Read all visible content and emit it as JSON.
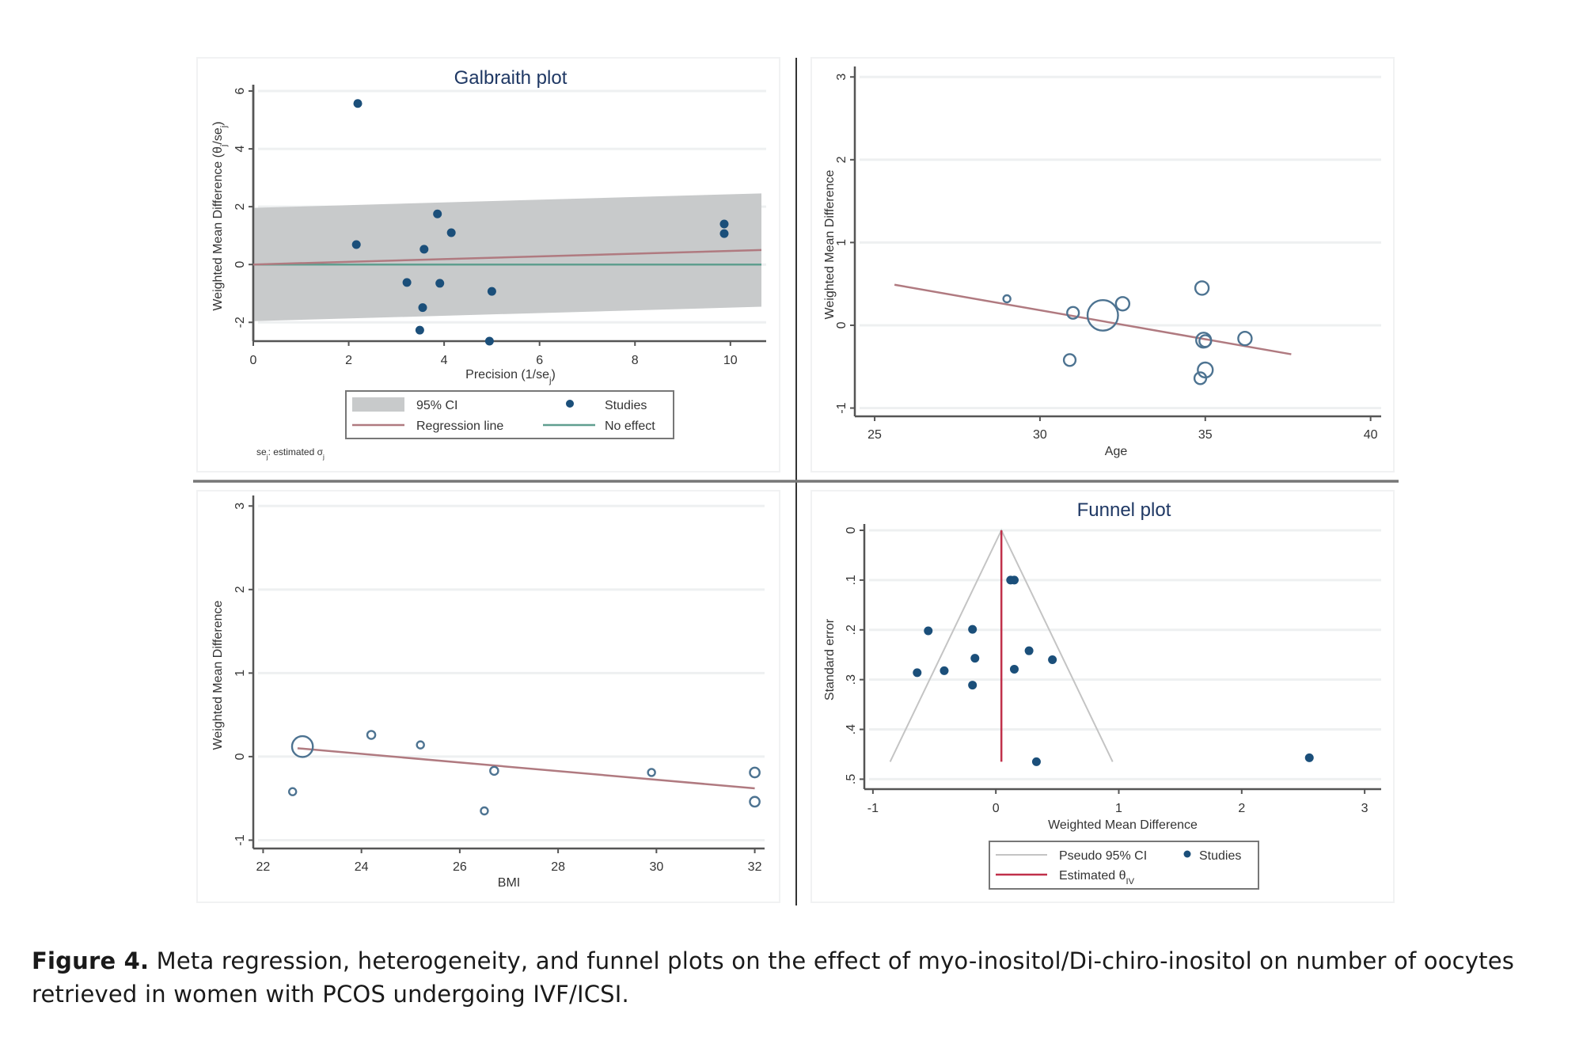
{
  "caption": {
    "label": "Figure 4.",
    "text": " Meta regression, heterogeneity, and funnel plots on the effect of myo-inositol/Di-chiro-inositol on number of oocytes retrieved in women with PCOS undergoing IVF/ICSI."
  },
  "colors": {
    "marker": "#1b4f7a",
    "bubble": "#4d7391",
    "regression": "#b07a80",
    "no_effect": "#5f9e8f",
    "ci_band": "#c8cacb",
    "funnel_lines": "#c4c4c4",
    "estimate_line": "#c0304a",
    "title": "#1f3864",
    "grid": "#eef0f1",
    "axis": "#555555"
  },
  "chart_data": [
    {
      "id": "galbraith",
      "type": "scatter",
      "title": "Galbraith plot",
      "xlabel": "Precision (1/se",
      "xlabel_sub": "j",
      "xlabel_end": ")",
      "ylabel": "Weighted Mean Difference (θ",
      "ylabel_sub1": "j",
      "ylabel_mid": "/se",
      "ylabel_sub2": "j",
      "ylabel_end": ")",
      "xlim": [
        0,
        10.65
      ],
      "ylim": [
        -2.65,
        6
      ],
      "xticks": [
        0,
        2,
        4,
        6,
        8,
        10
      ],
      "yticks": [
        -2,
        0,
        2,
        4,
        6
      ],
      "grid": true,
      "points": [
        {
          "x": 2.19,
          "y": 5.57
        },
        {
          "x": 2.16,
          "y": 0.69
        },
        {
          "x": 3.86,
          "y": 1.75
        },
        {
          "x": 4.15,
          "y": 1.1
        },
        {
          "x": 3.58,
          "y": 0.53
        },
        {
          "x": 3.22,
          "y": -0.62
        },
        {
          "x": 3.91,
          "y": -0.65
        },
        {
          "x": 3.55,
          "y": -1.49
        },
        {
          "x": 3.49,
          "y": -2.27
        },
        {
          "x": 5.0,
          "y": -0.93
        },
        {
          "x": 4.95,
          "y": -2.65
        },
        {
          "x": 9.87,
          "y": 1.4
        },
        {
          "x": 9.87,
          "y": 1.07
        }
      ],
      "regression_line": {
        "x": [
          0,
          10.65
        ],
        "y": [
          0,
          0.5
        ]
      },
      "no_effect_line": {
        "y": 0
      },
      "ci_band": {
        "x": [
          0,
          10.65
        ],
        "upper": [
          1.96,
          2.46
        ],
        "lower": [
          -1.96,
          -1.46
        ]
      },
      "legend": {
        "placement": "bottom-center",
        "items": [
          {
            "label": "95% CI",
            "kind": "band"
          },
          {
            "label": "Studies",
            "kind": "marker"
          },
          {
            "label": "Regression line",
            "kind": "regression"
          },
          {
            "label": "No effect",
            "kind": "no_effect"
          }
        ]
      },
      "note": {
        "prefix": "se",
        "sub1": "j",
        "mid": ": estimated σ",
        "sub2": "j"
      }
    },
    {
      "id": "age",
      "type": "scatter",
      "title": "",
      "xlabel": "Age",
      "ylabel": "Weighted Mean Difference",
      "xlim": [
        24.4,
        40.2
      ],
      "ylim": [
        -1.1,
        3.05
      ],
      "xticks": [
        25,
        30,
        35,
        40
      ],
      "yticks": [
        -1,
        0,
        1,
        2,
        3
      ],
      "grid": true,
      "bubbles": [
        {
          "x": 29.0,
          "y": 0.32,
          "w": 1
        },
        {
          "x": 31.0,
          "y": 0.15,
          "w": 3
        },
        {
          "x": 31.9,
          "y": 0.12,
          "w": 22
        },
        {
          "x": 32.5,
          "y": 0.26,
          "w": 4
        },
        {
          "x": 34.9,
          "y": 0.45,
          "w": 4
        },
        {
          "x": 34.95,
          "y": -0.18,
          "w": 5
        },
        {
          "x": 35.0,
          "y": -0.19,
          "w": 3
        },
        {
          "x": 36.2,
          "y": -0.16,
          "w": 4
        },
        {
          "x": 30.9,
          "y": -0.42,
          "w": 3
        },
        {
          "x": 35.0,
          "y": -0.54,
          "w": 5
        },
        {
          "x": 34.85,
          "y": -0.64,
          "w": 3
        }
      ],
      "regression_line": {
        "x": [
          25.6,
          37.6
        ],
        "y": [
          0.49,
          -0.35
        ]
      }
    },
    {
      "id": "bmi",
      "type": "scatter",
      "title": "",
      "xlabel": "BMI",
      "ylabel": "Weighted Mean Difference",
      "xlim": [
        21.8,
        32.2
      ],
      "ylim": [
        -1.1,
        3.05
      ],
      "xticks": [
        22,
        24,
        26,
        28,
        30,
        32
      ],
      "yticks": [
        -1,
        0,
        1,
        2,
        3
      ],
      "grid": true,
      "bubbles": [
        {
          "x": 22.8,
          "y": 0.12,
          "w": 10
        },
        {
          "x": 24.2,
          "y": 0.26,
          "w": 1.3
        },
        {
          "x": 25.2,
          "y": 0.14,
          "w": 1
        },
        {
          "x": 26.7,
          "y": -0.17,
          "w": 1.3
        },
        {
          "x": 29.9,
          "y": -0.19,
          "w": 1
        },
        {
          "x": 32.0,
          "y": -0.19,
          "w": 2
        },
        {
          "x": 22.6,
          "y": -0.42,
          "w": 1
        },
        {
          "x": 26.5,
          "y": -0.65,
          "w": 1
        },
        {
          "x": 32.0,
          "y": -0.54,
          "w": 2
        }
      ],
      "regression_line": {
        "x": [
          22.7,
          32.0
        ],
        "y": [
          0.1,
          -0.38
        ]
      }
    },
    {
      "id": "funnel",
      "type": "scatter",
      "title": "Funnel plot",
      "xlabel": "Weighted Mean Difference",
      "ylabel": "Standard error",
      "xlim": [
        -1.07,
        3.07
      ],
      "ylim": [
        0,
        0.52
      ],
      "y_reversed": true,
      "xticks": [
        -1,
        0,
        1,
        2,
        3
      ],
      "yticks": [
        0,
        0.1,
        0.2,
        0.3,
        0.4,
        0.5
      ],
      "ytick_labels": [
        "0",
        ".1",
        ".2",
        ".3",
        ".4",
        ".5"
      ],
      "grid": true,
      "points": [
        {
          "x": 0.12,
          "y": 0.1
        },
        {
          "x": 0.15,
          "y": 0.1
        },
        {
          "x": -0.55,
          "y": 0.202
        },
        {
          "x": -0.19,
          "y": 0.199
        },
        {
          "x": 0.27,
          "y": 0.242
        },
        {
          "x": 0.46,
          "y": 0.26
        },
        {
          "x": -0.17,
          "y": 0.257
        },
        {
          "x": -0.64,
          "y": 0.286
        },
        {
          "x": -0.42,
          "y": 0.282
        },
        {
          "x": 0.15,
          "y": 0.279
        },
        {
          "x": -0.19,
          "y": 0.311
        },
        {
          "x": 0.33,
          "y": 0.465
        },
        {
          "x": 2.55,
          "y": 0.457
        }
      ],
      "estimate": 0.045,
      "funnel": {
        "apex_x": 0.045,
        "bottom_se": 0.465,
        "left_x": -0.86,
        "right_x": 0.95
      },
      "legend": {
        "placement": "bottom-center",
        "items": [
          {
            "label": "Pseudo 95% CI",
            "kind": "funnel"
          },
          {
            "label": "Studies",
            "kind": "marker"
          },
          {
            "label": "Estimated θ",
            "sub": "IV",
            "kind": "estimate"
          }
        ]
      }
    }
  ]
}
